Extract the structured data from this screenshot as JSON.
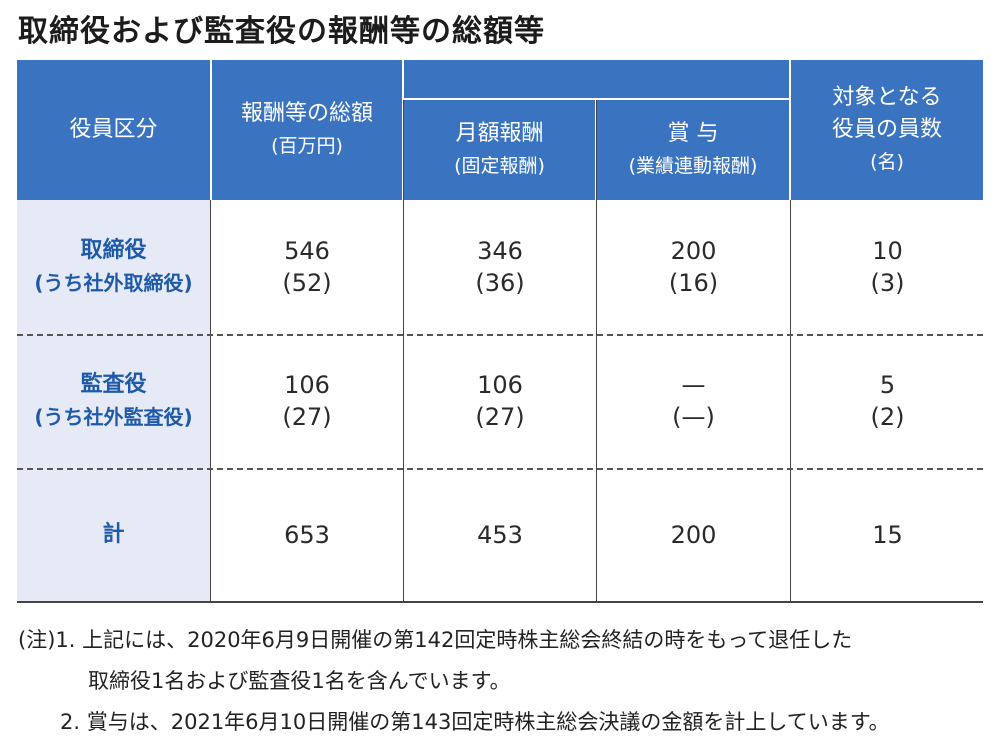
{
  "title": "取締役および監査役の報酬等の総額等",
  "headers": {
    "category": "役員区分",
    "total_line1": "報酬等の総額",
    "total_line2": "(百万円)",
    "monthly_line1": "月額報酬",
    "monthly_line2": "(固定報酬)",
    "bonus_line1": "賞 与",
    "bonus_line2": "(業績連動報酬)",
    "count_line1": "対象となる",
    "count_line2": "役員の員数",
    "count_line3": "(名)"
  },
  "rows": [
    {
      "label": "取締役",
      "sublabel": "(うち社外取締役)",
      "total": "546",
      "total_sub": "(52)",
      "monthly": "346",
      "monthly_sub": "(36)",
      "bonus": "200",
      "bonus_sub": "(16)",
      "count": "10",
      "count_sub": "(3)"
    },
    {
      "label": "監査役",
      "sublabel": "(うち社外監査役)",
      "total": "106",
      "total_sub": "(27)",
      "monthly": "106",
      "monthly_sub": "(27)",
      "bonus": "—",
      "bonus_sub": "(—)",
      "count": "5",
      "count_sub": "(2)"
    },
    {
      "label": "計",
      "total": "653",
      "monthly": "453",
      "bonus": "200",
      "count": "15"
    }
  ],
  "notes": {
    "prefix": "(注)1.",
    "note1_line1": "上記には、2020年6月9日開催の第142回定時株主総会終結の時をもって退任した",
    "note1_line2": "取締役1名および監査役1名を含んでいます。",
    "note2_prefix": "2.",
    "note2": "賞与は、2021年6月10日開催の第143回定時株主総会決議の金額を計上しています。"
  }
}
